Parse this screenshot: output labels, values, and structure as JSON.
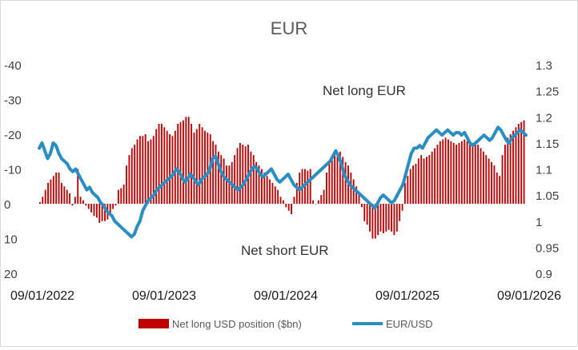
{
  "chart_data": {
    "type": "bar+line",
    "title": "EUR",
    "annotations": [
      "Net long EUR",
      "Net short EUR"
    ],
    "x_tick_labels": [
      "09/01/2022",
      "09/01/2023",
      "09/01/2024",
      "09/01/2025",
      "09/01/2026"
    ],
    "y_left": {
      "range": [
        20,
        -40
      ],
      "tick_labels": [
        "-40",
        "-30",
        "-20",
        "-10",
        "0",
        "10",
        "20"
      ]
    },
    "y_right": {
      "range": [
        0.9,
        1.3
      ],
      "tick_labels": [
        "1.3",
        "1.25",
        "1.2",
        "1.15",
        "1.1",
        "1.05",
        "1",
        "0.95",
        "0.9"
      ]
    },
    "legend_position": "bottom",
    "grid": false,
    "series": [
      {
        "name": "Net long USD position ($bn)",
        "kind": "bar",
        "axis": "left",
        "color": "#c00000",
        "values": [
          -0.5,
          -2,
          -4,
          -6,
          -7,
          -8,
          -9,
          -9,
          -6,
          -5,
          -4,
          -3,
          0.5,
          -2,
          -10,
          -2,
          -1,
          0.5,
          1.5,
          2.5,
          3.5,
          4,
          5.5,
          5,
          5,
          4.5,
          3,
          1.5,
          0.5,
          -4,
          -4.5,
          -5.5,
          -11,
          -14,
          -16,
          -17,
          -18.5,
          -19.5,
          -19.5,
          -20,
          -18,
          -18.5,
          -19.5,
          -21.5,
          -23,
          -23,
          -22,
          -21,
          -20,
          -19.5,
          -21,
          -23,
          -23.5,
          -24,
          -25,
          -25,
          -23,
          -20.5,
          -21.5,
          -23,
          -22,
          -21,
          -20.5,
          -20,
          -18,
          -17,
          -15,
          -14,
          -13,
          -11,
          -11,
          -12,
          -14,
          -16,
          -17.5,
          -17,
          -16.5,
          -17,
          -15,
          -14,
          -12,
          -11,
          -10,
          -9,
          -8,
          -7,
          -6,
          -5,
          -4,
          -2,
          -1,
          1,
          2,
          3,
          -2,
          -6,
          -9,
          -10,
          -10,
          -9.5,
          -10,
          -1,
          0,
          -1,
          -2.5,
          -4,
          -9,
          -12,
          -14,
          -15,
          -15,
          -15,
          -13.5,
          -12,
          -11,
          -9,
          -7,
          -5,
          -3,
          1,
          5,
          6,
          8,
          10,
          10,
          9,
          8,
          8.5,
          8,
          7.5,
          8,
          9,
          8,
          5,
          2,
          -6,
          -8,
          -10,
          -11,
          -11.5,
          -13,
          -14,
          -13,
          -13.5,
          -14,
          -15,
          -16,
          -17,
          -18,
          -18.5,
          -19,
          -18.5,
          -18,
          -17.5,
          -17,
          -17.5,
          -18,
          -18.5,
          -18,
          -17.5,
          -17.5,
          -18,
          -17,
          -16,
          -15,
          -14,
          -13,
          -12,
          -11,
          -9,
          -8,
          -14,
          -17,
          -19,
          -20,
          -21,
          -22,
          -23,
          -23.5,
          -24
        ]
      },
      {
        "name": "EUR/USD",
        "kind": "line",
        "axis": "right",
        "color": "#2a8ec2",
        "values": [
          1.14,
          1.15,
          1.135,
          1.12,
          1.13,
          1.15,
          1.145,
          1.13,
          1.12,
          1.115,
          1.11,
          1.1,
          1.095,
          1.1,
          1.09,
          1.08,
          1.07,
          1.06,
          1.065,
          1.055,
          1.05,
          1.045,
          1.035,
          1.03,
          1.02,
          1.015,
          1.01,
          1.0,
          0.995,
          0.99,
          0.985,
          0.98,
          0.975,
          0.97,
          0.975,
          0.99,
          1.0,
          1.02,
          1.03,
          1.04,
          1.045,
          1.05,
          1.06,
          1.065,
          1.07,
          1.075,
          1.08,
          1.085,
          1.09,
          1.1,
          1.095,
          1.085,
          1.075,
          1.08,
          1.09,
          1.085,
          1.075,
          1.07,
          1.08,
          1.085,
          1.09,
          1.1,
          1.12,
          1.125,
          1.11,
          1.095,
          1.085,
          1.08,
          1.075,
          1.07,
          1.065,
          1.06,
          1.065,
          1.07,
          1.08,
          1.09,
          1.1,
          1.105,
          1.1,
          1.09,
          1.085,
          1.09,
          1.095,
          1.1,
          1.09,
          1.08,
          1.075,
          1.08,
          1.085,
          1.09,
          1.08,
          1.07,
          1.065,
          1.06,
          1.065,
          1.07,
          1.075,
          1.08,
          1.085,
          1.09,
          1.095,
          1.1,
          1.105,
          1.11,
          1.115,
          1.125,
          1.135,
          1.125,
          1.11,
          1.09,
          1.08,
          1.07,
          1.065,
          1.06,
          1.055,
          1.05,
          1.045,
          1.04,
          1.035,
          1.03,
          1.025,
          1.035,
          1.045,
          1.05,
          1.045,
          1.04,
          1.035,
          1.04,
          1.05,
          1.06,
          1.07,
          1.09,
          1.11,
          1.13,
          1.14,
          1.14,
          1.145,
          1.14,
          1.15,
          1.16,
          1.165,
          1.17,
          1.175,
          1.17,
          1.165,
          1.17,
          1.175,
          1.17,
          1.165,
          1.17,
          1.17,
          1.165,
          1.17,
          1.16,
          1.15,
          1.145,
          1.15,
          1.155,
          1.16,
          1.165,
          1.16,
          1.155,
          1.16,
          1.17,
          1.18,
          1.175,
          1.165,
          1.155,
          1.15,
          1.16,
          1.165,
          1.17,
          1.175,
          1.17,
          1.165
        ]
      }
    ]
  }
}
